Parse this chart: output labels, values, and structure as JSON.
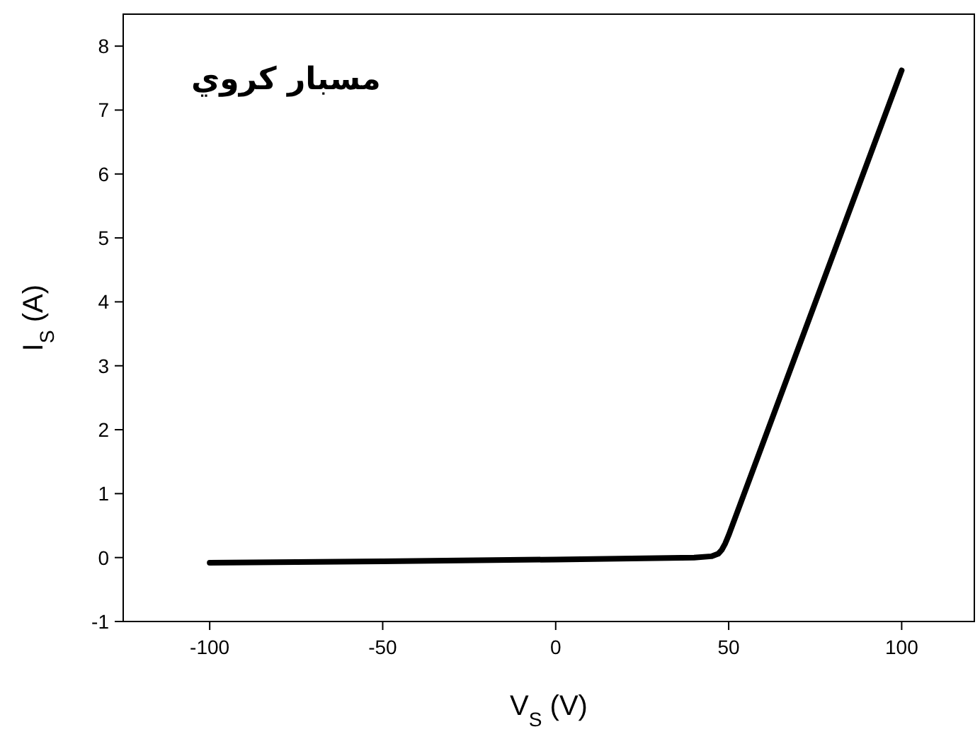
{
  "chart_data": {
    "type": "line",
    "xlabel": "V$_{S}$ (V)",
    "ylabel": "I$_{S}$ (A)",
    "annotations": [
      "مسبار كروي"
    ],
    "x": [
      -100,
      -50,
      0,
      40,
      45,
      47,
      48,
      49,
      50,
      100
    ],
    "series": [
      {
        "color": "#000000",
        "values": [
          -0.08,
          -0.06,
          -0.03,
          0,
          0.02,
          0.06,
          0.12,
          0.22,
          0.35,
          7.62
        ]
      }
    ],
    "xlim": [
      -125,
      121
    ],
    "xticks": [
      -100,
      -50,
      0,
      50,
      100
    ],
    "ylim": [
      -1,
      8.5
    ],
    "yticks": [
      -1,
      0,
      1,
      2,
      3,
      4,
      5,
      6,
      7,
      8
    ],
    "grid": false,
    "marker": "none",
    "line_style": "solid"
  }
}
